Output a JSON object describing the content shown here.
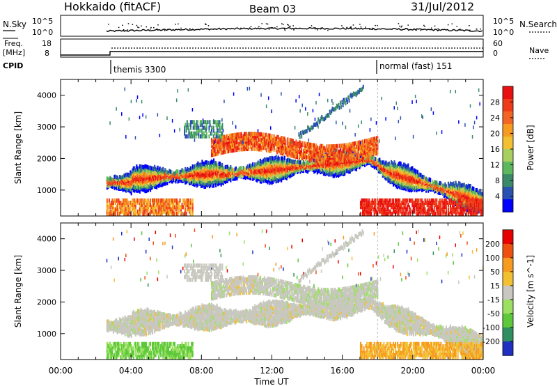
{
  "header": {
    "station": "Hokkaido (fitACF)",
    "beam": "Beam 03",
    "date": "31/Jul/2012"
  },
  "top_panels": {
    "nsky": {
      "label": "N.Sky",
      "ticks_left": [
        "10^5",
        "10^0"
      ],
      "ticks_right": [
        "10^5",
        "10^0"
      ],
      "right_label": "N.Search"
    },
    "freq": {
      "label_line1": "Freq.",
      "label_line2": "[MHz]",
      "ticks_left": [
        "18",
        "8"
      ],
      "ticks_right": [
        "60",
        "0"
      ],
      "right_label": "Nave"
    },
    "cpid": {
      "label": "CPID",
      "segments": [
        {
          "name": "themis 3300",
          "start_hour": 2.6
        },
        {
          "name": "normal (fast) 151",
          "start_hour": 18.0
        }
      ]
    }
  },
  "chart_data": [
    {
      "type": "heatmap",
      "quantity": "Power",
      "ylabel": "Slant Range [km]",
      "xlabel": "Time UT",
      "x_range_hours": [
        0,
        24
      ],
      "ylim": [
        180,
        4500
      ],
      "y_ticks": [
        "4000",
        "3000",
        "2000",
        "1000"
      ],
      "x_ticks": [
        "00:00",
        "04:00",
        "08:00",
        "12:00",
        "16:00",
        "20:00",
        "00:00"
      ],
      "colorbar": {
        "label": "Power [dB]",
        "ticks": [
          "28",
          "24",
          "20",
          "16",
          "12",
          "8",
          "4"
        ],
        "colors": [
          "#0000ff",
          "#2b52b0",
          "#3a8a6a",
          "#5cb85c",
          "#a8d060",
          "#f2c030",
          "#f79a20",
          "#f26522",
          "#ee3b1a",
          "#e81010"
        ]
      },
      "data_start_hour": 2.6,
      "echo_bands": [
        {
          "description": "main F-region echo band",
          "range_km_at_start": 1300,
          "range_km_at_end": 650,
          "peak_power_db": 28
        }
      ]
    },
    {
      "type": "heatmap",
      "quantity": "Velocity",
      "ylabel": "Slant Range [km]",
      "xlabel": "Time UT",
      "x_range_hours": [
        0,
        24
      ],
      "ylim": [
        180,
        4500
      ],
      "y_ticks": [
        "4000",
        "3000",
        "2000",
        "1000"
      ],
      "x_ticks": [
        "00:00",
        "04:00",
        "08:00",
        "12:00",
        "16:00",
        "20:00",
        "00:00"
      ],
      "colorbar": {
        "label": "Velocity [m s^-1]",
        "ticks": [
          "200",
          "100",
          "50",
          "15",
          "-15",
          "-50",
          "-100",
          "-200"
        ],
        "colors": [
          "#2030c0",
          "#2f8f60",
          "#5cc83a",
          "#9be060",
          "#c8c8c0",
          "#f2c030",
          "#f79a20",
          "#ee5010",
          "#e80000"
        ]
      },
      "data_start_hour": 2.6
    }
  ]
}
